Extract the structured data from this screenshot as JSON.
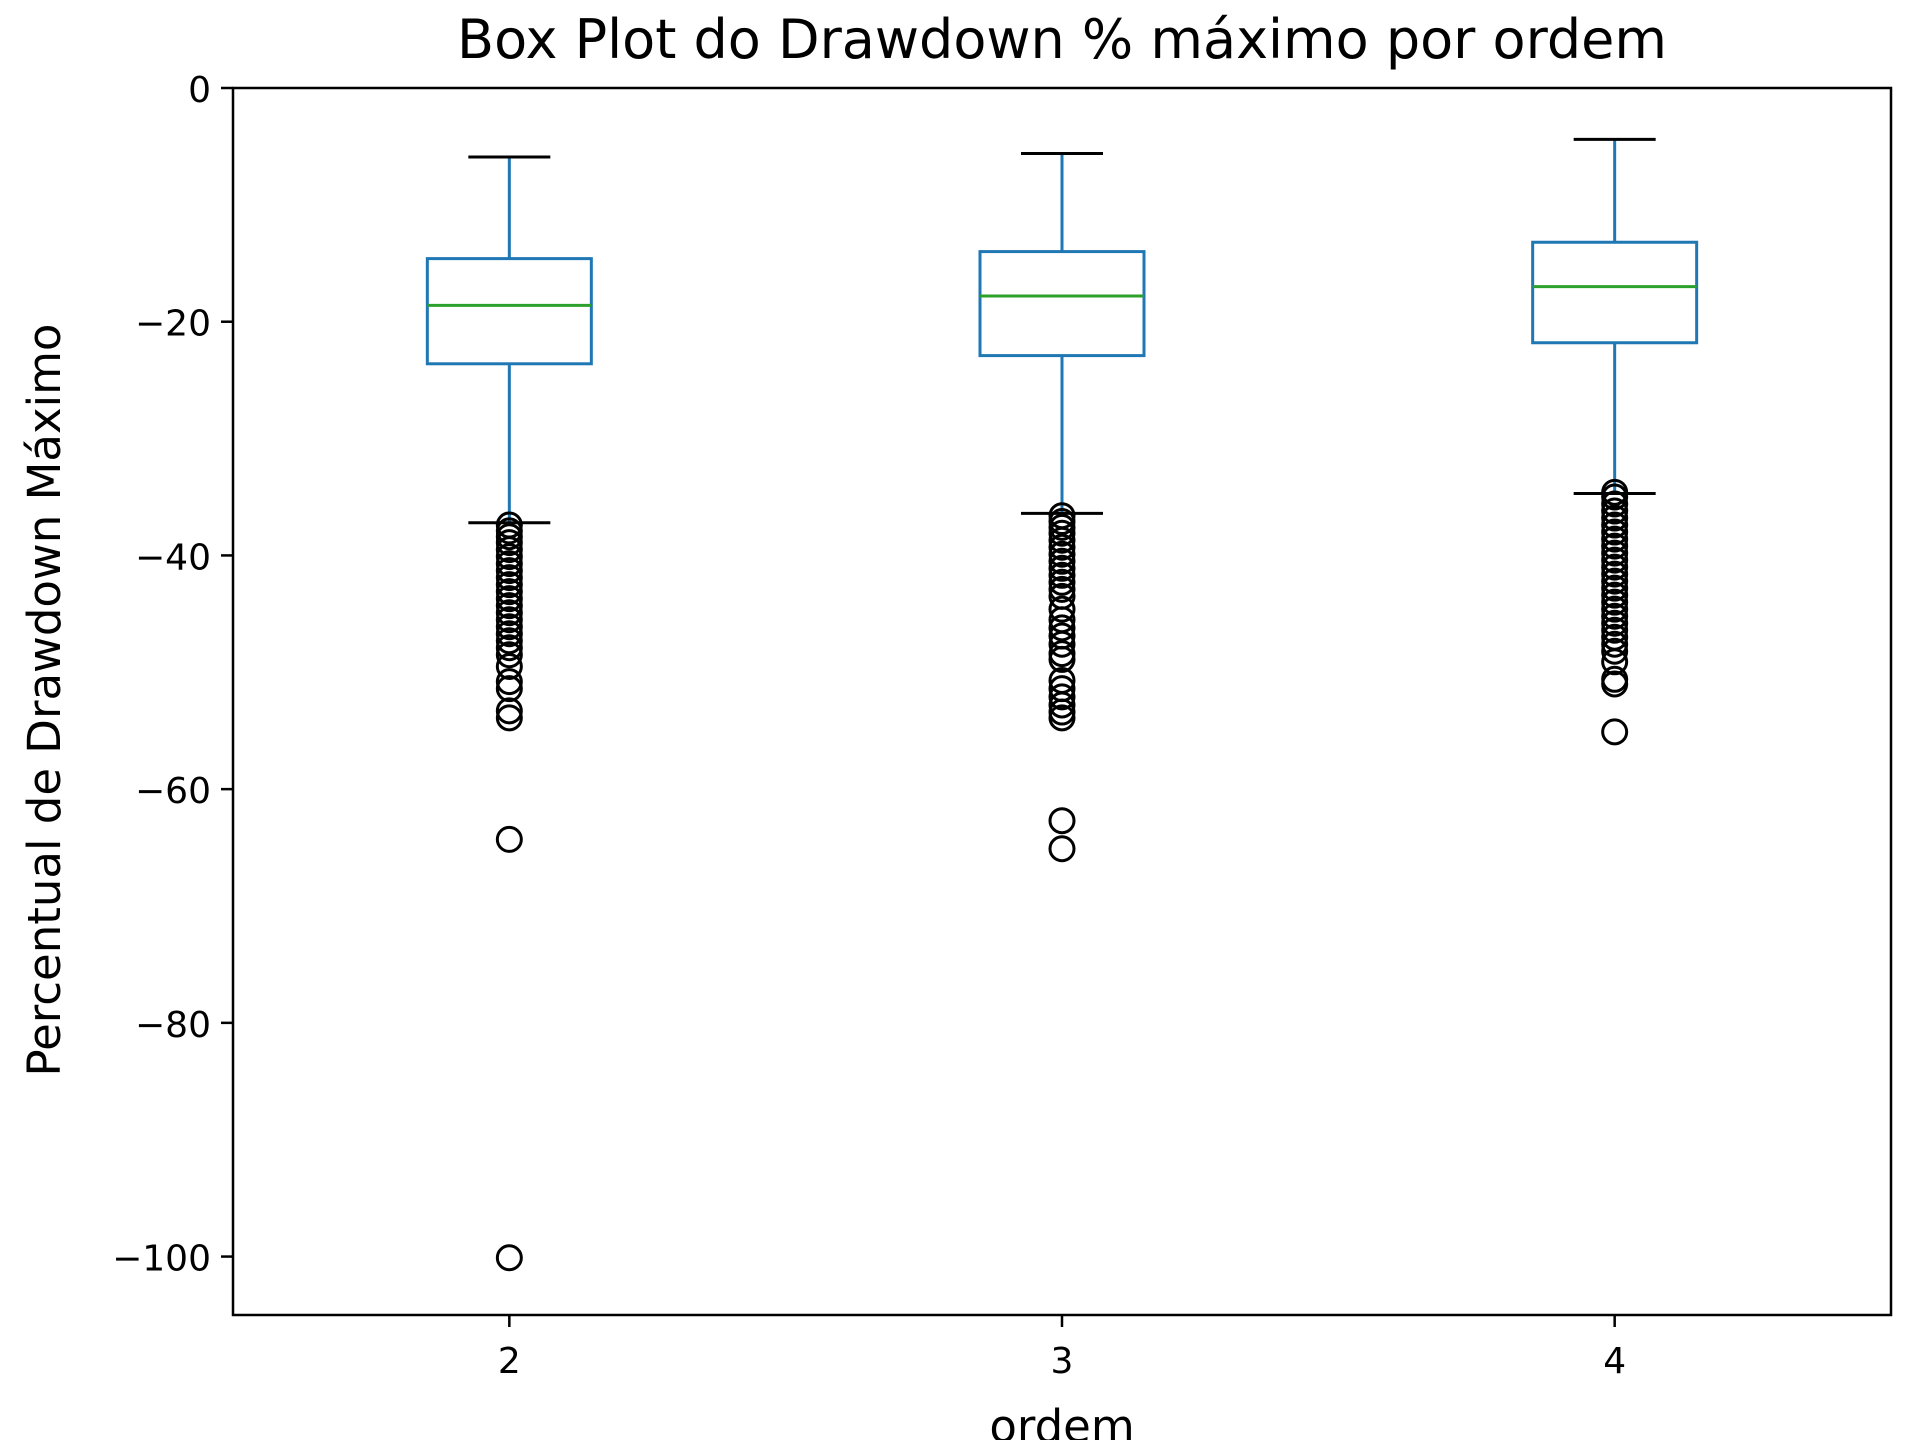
{
  "chart_data": {
    "type": "box",
    "title": "Box Plot do Drawdown % máximo por ordem",
    "xlabel": "ordem",
    "ylabel": "Percentual de Drawdown Máximo",
    "categories": [
      "2",
      "3",
      "4"
    ],
    "ylim": [
      -105,
      0
    ],
    "yticks": [
      0,
      -20,
      -40,
      -60,
      -80,
      -100
    ],
    "ytick_labels": [
      "0",
      "−20",
      "−40",
      "−60",
      "−80",
      "−100"
    ],
    "grid": false,
    "colors": {
      "box": "#1f77b4",
      "median": "#2ca02c",
      "whisker_cap": "#000000",
      "flier": "#000000"
    },
    "series": [
      {
        "category": "2",
        "whisker_high": -5.9,
        "q3": -14.6,
        "median": -18.6,
        "q1": -23.6,
        "whisker_low": -37.2,
        "fliers": [
          -37.4,
          -37.9,
          -38.4,
          -38.9,
          -39.5,
          -40.1,
          -40.7,
          -41.3,
          -41.9,
          -42.5,
          -43.1,
          -43.7,
          -44.3,
          -44.9,
          -45.5,
          -46.1,
          -46.7,
          -47.3,
          -47.9,
          -48.5,
          -49.5,
          -50.8,
          -51.4,
          -53.3,
          -53.9,
          -64.3,
          -100.1
        ]
      },
      {
        "category": "3",
        "whisker_high": -5.6,
        "q3": -14.0,
        "median": -17.8,
        "q1": -22.9,
        "whisker_low": -36.4,
        "fliers": [
          -36.6,
          -37.1,
          -37.6,
          -38.1,
          -38.7,
          -39.3,
          -39.9,
          -40.5,
          -41.1,
          -41.7,
          -42.3,
          -42.9,
          -43.5,
          -44.6,
          -45.5,
          -46.2,
          -46.9,
          -47.6,
          -48.4,
          -48.9,
          -50.7,
          -51.4,
          -52.1,
          -52.8,
          -53.4,
          -53.9,
          -62.7,
          -65.1
        ]
      },
      {
        "category": "4",
        "whisker_high": -4.4,
        "q3": -13.2,
        "median": -17.0,
        "q1": -21.8,
        "whisker_low": -34.7,
        "fliers": [
          -34.6,
          -35.0,
          -35.6,
          -36.2,
          -36.8,
          -37.4,
          -38.0,
          -38.6,
          -39.2,
          -39.8,
          -40.4,
          -41.0,
          -41.6,
          -42.2,
          -42.8,
          -43.4,
          -44.0,
          -44.6,
          -45.2,
          -45.8,
          -46.4,
          -47.0,
          -47.6,
          -48.2,
          -49.1,
          -50.6,
          -51.0,
          -55.1
        ]
      }
    ]
  }
}
